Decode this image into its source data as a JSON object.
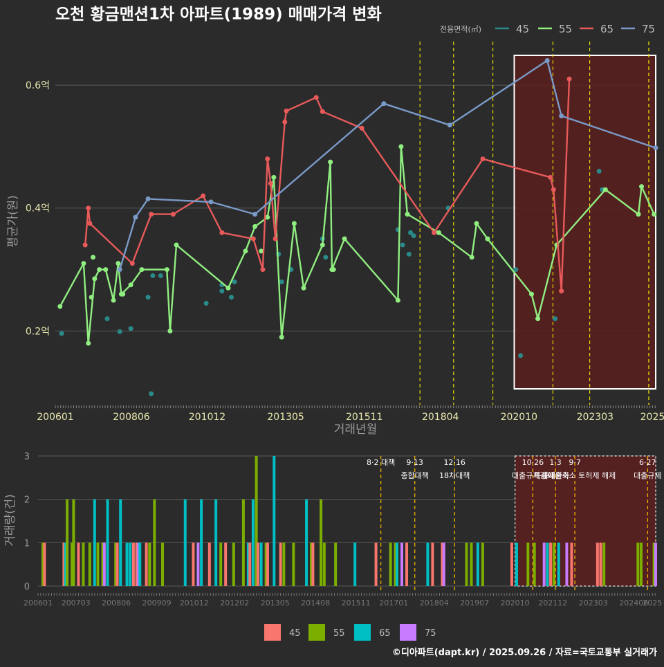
{
  "chart_data": [
    {
      "type": "line",
      "title": "오천 황금맨션1차 아파트(1989) 매매가격 변화",
      "xlabel": "거래년월",
      "ylabel": "평균가(원)",
      "x_unit": "year (decimal)",
      "xlim": [
        2006.0,
        2025.1
      ],
      "ylim": [
        0.08,
        0.68
      ],
      "yticks": [
        {
          "v": 0.2,
          "label": "0.2억"
        },
        {
          "v": 0.4,
          "label": "0.4억"
        },
        {
          "v": 0.6,
          "label": "0.6억"
        }
      ],
      "xticks": [
        {
          "v": 2006.0,
          "label": "200601"
        },
        {
          "v": 2008.42,
          "label": "200806"
        },
        {
          "v": 2010.83,
          "label": "201012"
        },
        {
          "v": 2013.33,
          "label": "201305"
        },
        {
          "v": 2015.83,
          "label": "201511"
        },
        {
          "v": 2018.25,
          "label": "201804"
        },
        {
          "v": 2020.75,
          "label": "202010"
        },
        {
          "v": 2023.17,
          "label": "202303"
        },
        {
          "v": 2025.0,
          "label": "2025"
        }
      ],
      "legend": {
        "title": "전용면적(㎡)",
        "position": "top-right",
        "labels": [
          "45",
          "55",
          "65",
          "75"
        ],
        "colors": [
          "#2a8a8a",
          "#90ee80",
          "#e85a5a",
          "#7a9ac8"
        ]
      },
      "highlight_range": [
        2020.6,
        2025.1
      ],
      "event_lines": [
        2017.6,
        2018.67,
        2019.92,
        2021.83,
        2023.0,
        2025.0,
        2025.3
      ],
      "series": [
        {
          "name": "45",
          "color": "#2a8a8a",
          "mode": "markers",
          "points": [
            [
              2006.2,
              0.196
            ],
            [
              2007.65,
              0.22
            ],
            [
              2008.05,
              0.199
            ],
            [
              2008.4,
              0.204
            ],
            [
              2008.95,
              0.255
            ],
            [
              2009.05,
              0.098
            ],
            [
              2009.1,
              0.29
            ],
            [
              2009.35,
              0.29
            ],
            [
              2010.8,
              0.245
            ],
            [
              2011.3,
              0.275
            ],
            [
              2011.3,
              0.265
            ],
            [
              2011.6,
              0.255
            ],
            [
              2011.7,
              0.28
            ],
            [
              2013.1,
              0.325
            ],
            [
              2013.2,
              0.28
            ],
            [
              2013.5,
              0.3
            ],
            [
              2014.5,
              0.35
            ],
            [
              2014.6,
              0.32
            ],
            [
              2016.9,
              0.365
            ],
            [
              2017.05,
              0.34
            ],
            [
              2017.25,
              0.325
            ],
            [
              2017.3,
              0.36
            ],
            [
              2017.4,
              0.355
            ],
            [
              2018.5,
              0.4
            ],
            [
              2020.65,
              0.3
            ],
            [
              2020.8,
              0.16
            ],
            [
              2021.9,
              0.22
            ],
            [
              2023.3,
              0.46
            ],
            [
              2023.4,
              0.43
            ]
          ]
        },
        {
          "name": "55",
          "color": "#90ee80",
          "mode": "lines+markers",
          "points": [
            [
              2006.15,
              0.24
            ],
            [
              2006.9,
              0.31
            ],
            [
              2007.05,
              0.18
            ],
            [
              2007.25,
              0.285
            ],
            [
              2007.4,
              0.3
            ],
            [
              2007.6,
              0.3
            ],
            [
              2007.85,
              0.25
            ],
            [
              2008.0,
              0.31
            ],
            [
              2008.1,
              0.26
            ],
            [
              2008.4,
              0.275
            ],
            [
              2008.75,
              0.3
            ],
            [
              2009.55,
              0.3
            ],
            [
              2009.65,
              0.2
            ],
            [
              2009.85,
              0.34
            ],
            [
              2011.5,
              0.27
            ],
            [
              2012.05,
              0.33
            ],
            [
              2012.35,
              0.37
            ],
            [
              2012.75,
              0.385
            ],
            [
              2012.95,
              0.45
            ],
            [
              2013.2,
              0.19
            ],
            [
              2013.6,
              0.375
            ],
            [
              2013.9,
              0.27
            ],
            [
              2014.5,
              0.34
            ],
            [
              2014.75,
              0.475
            ],
            [
              2014.8,
              0.3
            ],
            [
              2015.2,
              0.35
            ],
            [
              2016.9,
              0.25
            ],
            [
              2017.0,
              0.5
            ],
            [
              2017.2,
              0.39
            ],
            [
              2018.2,
              0.36
            ],
            [
              2019.25,
              0.32
            ],
            [
              2019.4,
              0.375
            ],
            [
              2019.75,
              0.35
            ],
            [
              2021.15,
              0.26
            ],
            [
              2021.35,
              0.22
            ],
            [
              2021.95,
              0.34
            ],
            [
              2023.5,
              0.43
            ],
            [
              2024.55,
              0.39
            ],
            [
              2024.65,
              0.435
            ],
            [
              2025.05,
              0.39
            ]
          ],
          "extra_markers": [
            [
              2007.15,
              0.255
            ],
            [
              2007.2,
              0.32
            ],
            [
              2008.15,
              0.26
            ],
            [
              2012.55,
              0.33
            ],
            [
              2014.85,
              0.3
            ]
          ]
        },
        {
          "name": "65",
          "color": "#e85a5a",
          "mode": "lines+markers",
          "points": [
            [
              2006.95,
              0.34
            ],
            [
              2007.05,
              0.4
            ],
            [
              2007.1,
              0.375
            ],
            [
              2008.45,
              0.31
            ],
            [
              2009.05,
              0.39
            ],
            [
              2009.75,
              0.39
            ],
            [
              2010.7,
              0.42
            ],
            [
              2011.3,
              0.36
            ],
            [
              2012.3,
              0.35
            ],
            [
              2012.6,
              0.3
            ],
            [
              2012.75,
              0.48
            ],
            [
              2012.85,
              0.44
            ],
            [
              2013.0,
              0.35
            ],
            [
              2013.3,
              0.54
            ],
            [
              2013.35,
              0.558
            ],
            [
              2014.3,
              0.58
            ],
            [
              2014.5,
              0.557
            ],
            [
              2015.75,
              0.53
            ],
            [
              2018.05,
              0.36
            ],
            [
              2019.6,
              0.48
            ],
            [
              2021.75,
              0.45
            ],
            [
              2021.85,
              0.43
            ],
            [
              2022.1,
              0.265
            ],
            [
              2022.35,
              0.61
            ]
          ]
        },
        {
          "name": "75",
          "color": "#7a9ac8",
          "mode": "lines+markers",
          "points": [
            [
              2008.05,
              0.3
            ],
            [
              2008.55,
              0.385
            ],
            [
              2008.95,
              0.415
            ],
            [
              2010.95,
              0.41
            ],
            [
              2012.35,
              0.39
            ],
            [
              2016.45,
              0.57
            ],
            [
              2018.55,
              0.535
            ],
            [
              2021.65,
              0.64
            ],
            [
              2022.1,
              0.55
            ],
            [
              2025.1,
              0.498
            ]
          ]
        }
      ]
    },
    {
      "type": "bar",
      "ylabel": "거래량(건)",
      "ylim": [
        0,
        3
      ],
      "yticks": [
        "0",
        "1",
        "2",
        "3"
      ],
      "xticks": [
        {
          "v": 2006.0,
          "label": "200601"
        },
        {
          "v": 2007.17,
          "label": "200703"
        },
        {
          "v": 2008.42,
          "label": "200806"
        },
        {
          "v": 2009.67,
          "label": "200909"
        },
        {
          "v": 2010.83,
          "label": "201012"
        },
        {
          "v": 2012.08,
          "label": "201202"
        },
        {
          "v": 2013.33,
          "label": "201305"
        },
        {
          "v": 2014.58,
          "label": "201408"
        },
        {
          "v": 2015.83,
          "label": "201511"
        },
        {
          "v": 2017.0,
          "label": "201701"
        },
        {
          "v": 2018.25,
          "label": "201804"
        },
        {
          "v": 2019.5,
          "label": "201907"
        },
        {
          "v": 2020.75,
          "label": "202010"
        },
        {
          "v": 2021.92,
          "label": "202112"
        },
        {
          "v": 2023.17,
          "label": "202303"
        },
        {
          "v": 2024.42,
          "label": "202406"
        },
        {
          "v": 2025.0,
          "label": "2025"
        }
      ],
      "legend": {
        "position": "bottom",
        "labels": [
          "45",
          "55",
          "65",
          "75"
        ],
        "colors": [
          "#f8766d",
          "#7cae00",
          "#00bfc4",
          "#c77cff"
        ]
      },
      "highlight_range": [
        2020.75,
        2025.1
      ],
      "events": [
        {
          "x": 2016.6,
          "label": "8·2 대책",
          "label2": ""
        },
        {
          "x": 2017.65,
          "label": "9·13",
          "label2": "종합대책"
        },
        {
          "x": 2018.88,
          "label": "12·16",
          "label2": "18차대책"
        },
        {
          "x": 2021.3,
          "label": "10·26",
          "label2": "대출규제강화"
        },
        {
          "x": 2022.0,
          "label": "1·3",
          "label2": "규제완화"
        },
        {
          "x": 2022.6,
          "label": "9·7",
          "label2": "특례대출축소 토허제 해제"
        },
        {
          "x": 2024.85,
          "label": "6·27",
          "label2": "대출규제"
        }
      ],
      "bars": [
        [
          2006.15,
          1,
          "55"
        ],
        [
          2006.2,
          1,
          "45"
        ],
        [
          2006.8,
          1,
          "45"
        ],
        [
          2006.85,
          1,
          "65"
        ],
        [
          2006.9,
          2,
          "55"
        ],
        [
          2007.05,
          1,
          "55"
        ],
        [
          2007.1,
          2,
          "55"
        ],
        [
          2007.25,
          1,
          "45"
        ],
        [
          2007.4,
          1,
          "55"
        ],
        [
          2007.6,
          1,
          "55"
        ],
        [
          2007.75,
          2,
          "65"
        ],
        [
          2007.85,
          1,
          "55"
        ],
        [
          2008.0,
          1,
          "55"
        ],
        [
          2008.05,
          1,
          "75"
        ],
        [
          2008.15,
          2,
          "65"
        ],
        [
          2008.4,
          1,
          "55"
        ],
        [
          2008.45,
          1,
          "45"
        ],
        [
          2008.55,
          2,
          "65"
        ],
        [
          2008.75,
          1,
          "65"
        ],
        [
          2008.85,
          1,
          "65"
        ],
        [
          2008.95,
          1,
          "45"
        ],
        [
          2009.05,
          1,
          "45"
        ],
        [
          2009.1,
          1,
          "75"
        ],
        [
          2009.15,
          1,
          "65"
        ],
        [
          2009.35,
          1,
          "45"
        ],
        [
          2009.45,
          1,
          "55"
        ],
        [
          2009.6,
          2,
          "55"
        ],
        [
          2009.85,
          1,
          "55"
        ],
        [
          2010.55,
          2,
          "65"
        ],
        [
          2010.8,
          1,
          "45"
        ],
        [
          2010.95,
          1,
          "75"
        ],
        [
          2011.05,
          2,
          "65"
        ],
        [
          2011.3,
          1,
          "45"
        ],
        [
          2011.5,
          2,
          "65"
        ],
        [
          2011.65,
          1,
          "55"
        ],
        [
          2011.8,
          1,
          "45"
        ],
        [
          2012.05,
          1,
          "55"
        ],
        [
          2012.35,
          2,
          "55"
        ],
        [
          2012.5,
          1,
          "65"
        ],
        [
          2012.55,
          1,
          "45"
        ],
        [
          2012.65,
          2,
          "65"
        ],
        [
          2012.75,
          3,
          "55"
        ],
        [
          2012.8,
          1,
          "45"
        ],
        [
          2012.9,
          1,
          "65"
        ],
        [
          2013.05,
          1,
          "55"
        ],
        [
          2013.1,
          1,
          "45"
        ],
        [
          2013.3,
          3,
          "65"
        ],
        [
          2013.5,
          1,
          "45"
        ],
        [
          2013.6,
          1,
          "55"
        ],
        [
          2013.9,
          1,
          "55"
        ],
        [
          2014.3,
          2,
          "65"
        ],
        [
          2014.45,
          1,
          "55"
        ],
        [
          2014.5,
          1,
          "45"
        ],
        [
          2014.75,
          2,
          "55"
        ],
        [
          2014.85,
          1,
          "55"
        ],
        [
          2015.2,
          1,
          "55"
        ],
        [
          2015.8,
          1,
          "65"
        ],
        [
          2016.45,
          1,
          "45"
        ],
        [
          2016.9,
          1,
          "55"
        ],
        [
          2017.05,
          1,
          "55"
        ],
        [
          2017.1,
          1,
          "65"
        ],
        [
          2017.25,
          1,
          "75"
        ],
        [
          2017.4,
          1,
          "45"
        ],
        [
          2018.05,
          1,
          "65"
        ],
        [
          2018.2,
          1,
          "45"
        ],
        [
          2018.5,
          1,
          "45"
        ],
        [
          2018.55,
          1,
          "75"
        ],
        [
          2019.25,
          1,
          "55"
        ],
        [
          2019.4,
          1,
          "55"
        ],
        [
          2019.6,
          1,
          "65"
        ],
        [
          2019.75,
          1,
          "55"
        ],
        [
          2020.65,
          1,
          "45"
        ],
        [
          2020.8,
          1,
          "65"
        ],
        [
          2021.15,
          1,
          "55"
        ],
        [
          2021.35,
          1,
          "55"
        ],
        [
          2021.65,
          1,
          "75"
        ],
        [
          2021.75,
          1,
          "65"
        ],
        [
          2021.85,
          1,
          "45"
        ],
        [
          2021.95,
          1,
          "55"
        ],
        [
          2022.1,
          1,
          "65"
        ],
        [
          2022.35,
          1,
          "75"
        ],
        [
          2022.5,
          1,
          "45"
        ],
        [
          2023.3,
          1,
          "45"
        ],
        [
          2023.4,
          1,
          "45"
        ],
        [
          2023.5,
          1,
          "55"
        ],
        [
          2024.55,
          1,
          "55"
        ],
        [
          2024.65,
          1,
          "55"
        ],
        [
          2025.05,
          1,
          "55"
        ],
        [
          2025.1,
          1,
          "75"
        ]
      ]
    }
  ],
  "footer": "©디아파트(dapt.kr) / 2025.09.26 / 자료=국토교통부 실거래가"
}
